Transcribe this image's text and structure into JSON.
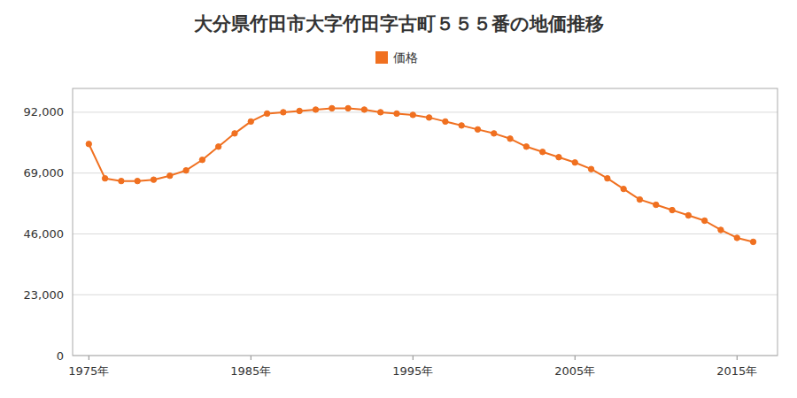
{
  "chart_data": {
    "type": "line",
    "title": "大分県竹田市大字竹田字古町５５５番の地価推移",
    "x": [
      1975,
      1976,
      1977,
      1978,
      1979,
      1980,
      1981,
      1982,
      1983,
      1984,
      1985,
      1986,
      1987,
      1988,
      1989,
      1990,
      1991,
      1992,
      1993,
      1994,
      1995,
      1996,
      1997,
      1998,
      1999,
      2000,
      2001,
      2002,
      2003,
      2004,
      2005,
      2006,
      2007,
      2008,
      2009,
      2010,
      2011,
      2012,
      2013,
      2014,
      2015,
      2016
    ],
    "series": [
      {
        "name": "価格",
        "color": "#f07020",
        "marker": "circle",
        "values": [
          80000,
          67000,
          66000,
          66000,
          66500,
          68000,
          70000,
          74000,
          79000,
          84000,
          88500,
          91500,
          92000,
          92500,
          93000,
          93500,
          93500,
          93000,
          92000,
          91500,
          91000,
          90000,
          88500,
          87000,
          85500,
          84000,
          82000,
          79000,
          77000,
          75000,
          73000,
          70500,
          67000,
          63000,
          59000,
          57000,
          55000,
          53000,
          51000,
          47500,
          44500,
          43000
        ]
      }
    ],
    "xlim": [
      1974.0,
      2017.5
    ],
    "xticks": [
      {
        "value": 1975,
        "label": "1975年"
      },
      {
        "value": 1985,
        "label": "1985年"
      },
      {
        "value": 1995,
        "label": "1995年"
      },
      {
        "value": 2005,
        "label": "2005年"
      },
      {
        "value": 2015,
        "label": "2015年"
      }
    ],
    "ylim": [
      0,
      101000
    ],
    "yticks": [
      0,
      {
        "value": 23000,
        "label": "23,000"
      },
      {
        "value": 46000,
        "label": "46,000"
      },
      {
        "value": 69000,
        "label": "69,000"
      },
      {
        "value": 92000,
        "label": "92,000"
      }
    ],
    "grid": "y",
    "legend": "top"
  }
}
